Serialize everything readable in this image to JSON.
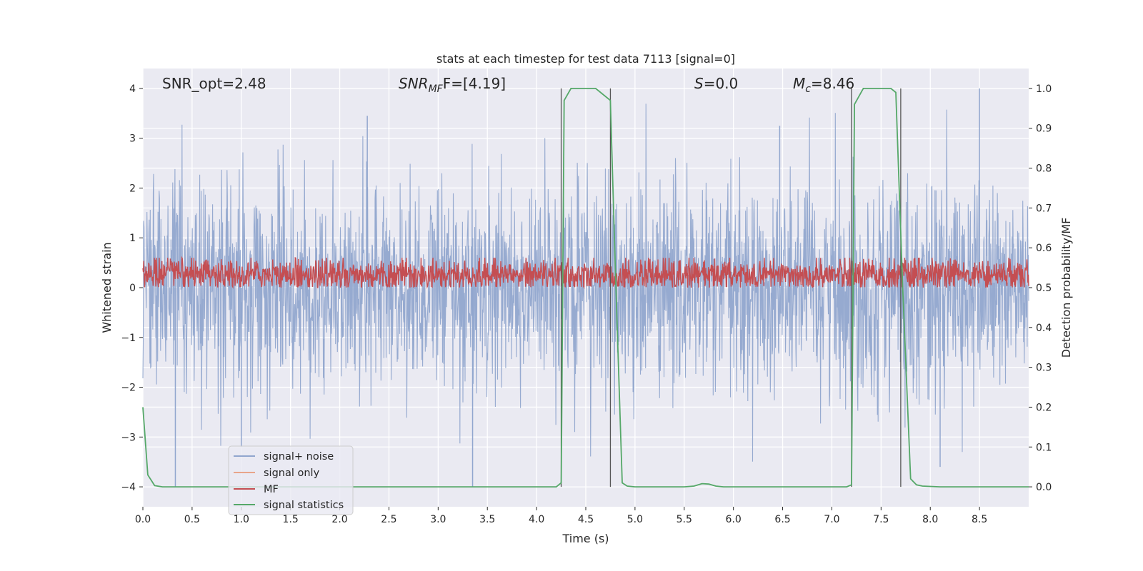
{
  "chart_data": {
    "type": "line",
    "title": "stats at each timestep for test data 7113 [signal=0]",
    "xlabel": "Time (s)",
    "ylabel": "Whitened strain",
    "y2label": "Detection probability/MF",
    "xlim": [
      0.0,
      9.0
    ],
    "ylim": [
      -4.4,
      4.4
    ],
    "y2lim": [
      -0.05,
      1.05
    ],
    "x_ticks": [
      "0.0",
      "0.5",
      "1.0",
      "1.5",
      "2.0",
      "2.5",
      "3.0",
      "3.5",
      "4.0",
      "4.5",
      "5.0",
      "5.5",
      "6.0",
      "6.5",
      "7.0",
      "7.5",
      "8.0",
      "8.5"
    ],
    "y_ticks": [
      "4",
      "3",
      "2",
      "1",
      "0",
      "−1",
      "−2",
      "−3",
      "−4"
    ],
    "y2_ticks": [
      "1.0",
      "0.9",
      "0.8",
      "0.7",
      "0.6",
      "0.5",
      "0.4",
      "0.3",
      "0.2",
      "0.1",
      "0.0"
    ],
    "annotations": {
      "snr_opt": "SNR_opt=2.48",
      "snr_mf_main": "SNR",
      "snr_mf_sub": "MF",
      "snr_mf_value": "F=[4.19]",
      "s_main": "S",
      "s_value": "=0.0",
      "mc_main": "M",
      "mc_sub": "c",
      "mc_value": "=8.46"
    },
    "legend": {
      "position": "lower-left",
      "entries": [
        {
          "label": "signal+ noise",
          "color": "#91a6ce"
        },
        {
          "label": "signal only",
          "color": "#e8a58a"
        },
        {
          "label": "MF",
          "color": "#c44e52"
        },
        {
          "label": "signal statistics",
          "color": "#55a868"
        }
      ]
    },
    "series": [
      {
        "name": "signal+ noise",
        "color": "#91a6ce",
        "description_values": "whitened noise, amplitude mostly within [-2.5, 2.5], peaks near 4.0 at 8.5 s and -4.0 near 0.35 s and 3.35 s",
        "envelope_y": [
          -2.6,
          2.6
        ]
      },
      {
        "name": "signal only",
        "color": "#e8a58a",
        "values": []
      },
      {
        "name": "MF",
        "color": "#c44e52",
        "axis": "right",
        "range": [
          0.5,
          0.57
        ]
      },
      {
        "name": "signal statistics",
        "color": "#55a868",
        "axis": "right",
        "x": [
          0.0,
          0.05,
          0.12,
          0.2,
          0.3,
          4.2,
          4.25,
          4.28,
          4.35,
          4.45,
          4.6,
          4.65,
          4.75,
          4.8,
          4.87,
          4.92,
          5.0,
          5.5,
          5.6,
          5.68,
          5.75,
          5.82,
          5.9,
          7.15,
          7.2,
          7.23,
          7.32,
          7.4,
          7.6,
          7.65,
          7.72,
          7.8,
          7.86,
          7.92,
          8.1,
          9.0
        ],
        "y": [
          0.2,
          0.03,
          0.003,
          0.0,
          0.0,
          0.0,
          0.01,
          0.97,
          1.0,
          1.0,
          1.0,
          0.99,
          0.97,
          0.55,
          0.01,
          0.002,
          0.0,
          0.0,
          0.002,
          0.008,
          0.007,
          0.002,
          0.0,
          0.0,
          0.005,
          0.96,
          1.0,
          1.0,
          1.0,
          0.99,
          0.5,
          0.02,
          0.005,
          0.002,
          0.0,
          0.0
        ]
      }
    ],
    "vertical_markers_x": [
      4.25,
      4.75,
      7.2,
      7.7
    ]
  }
}
